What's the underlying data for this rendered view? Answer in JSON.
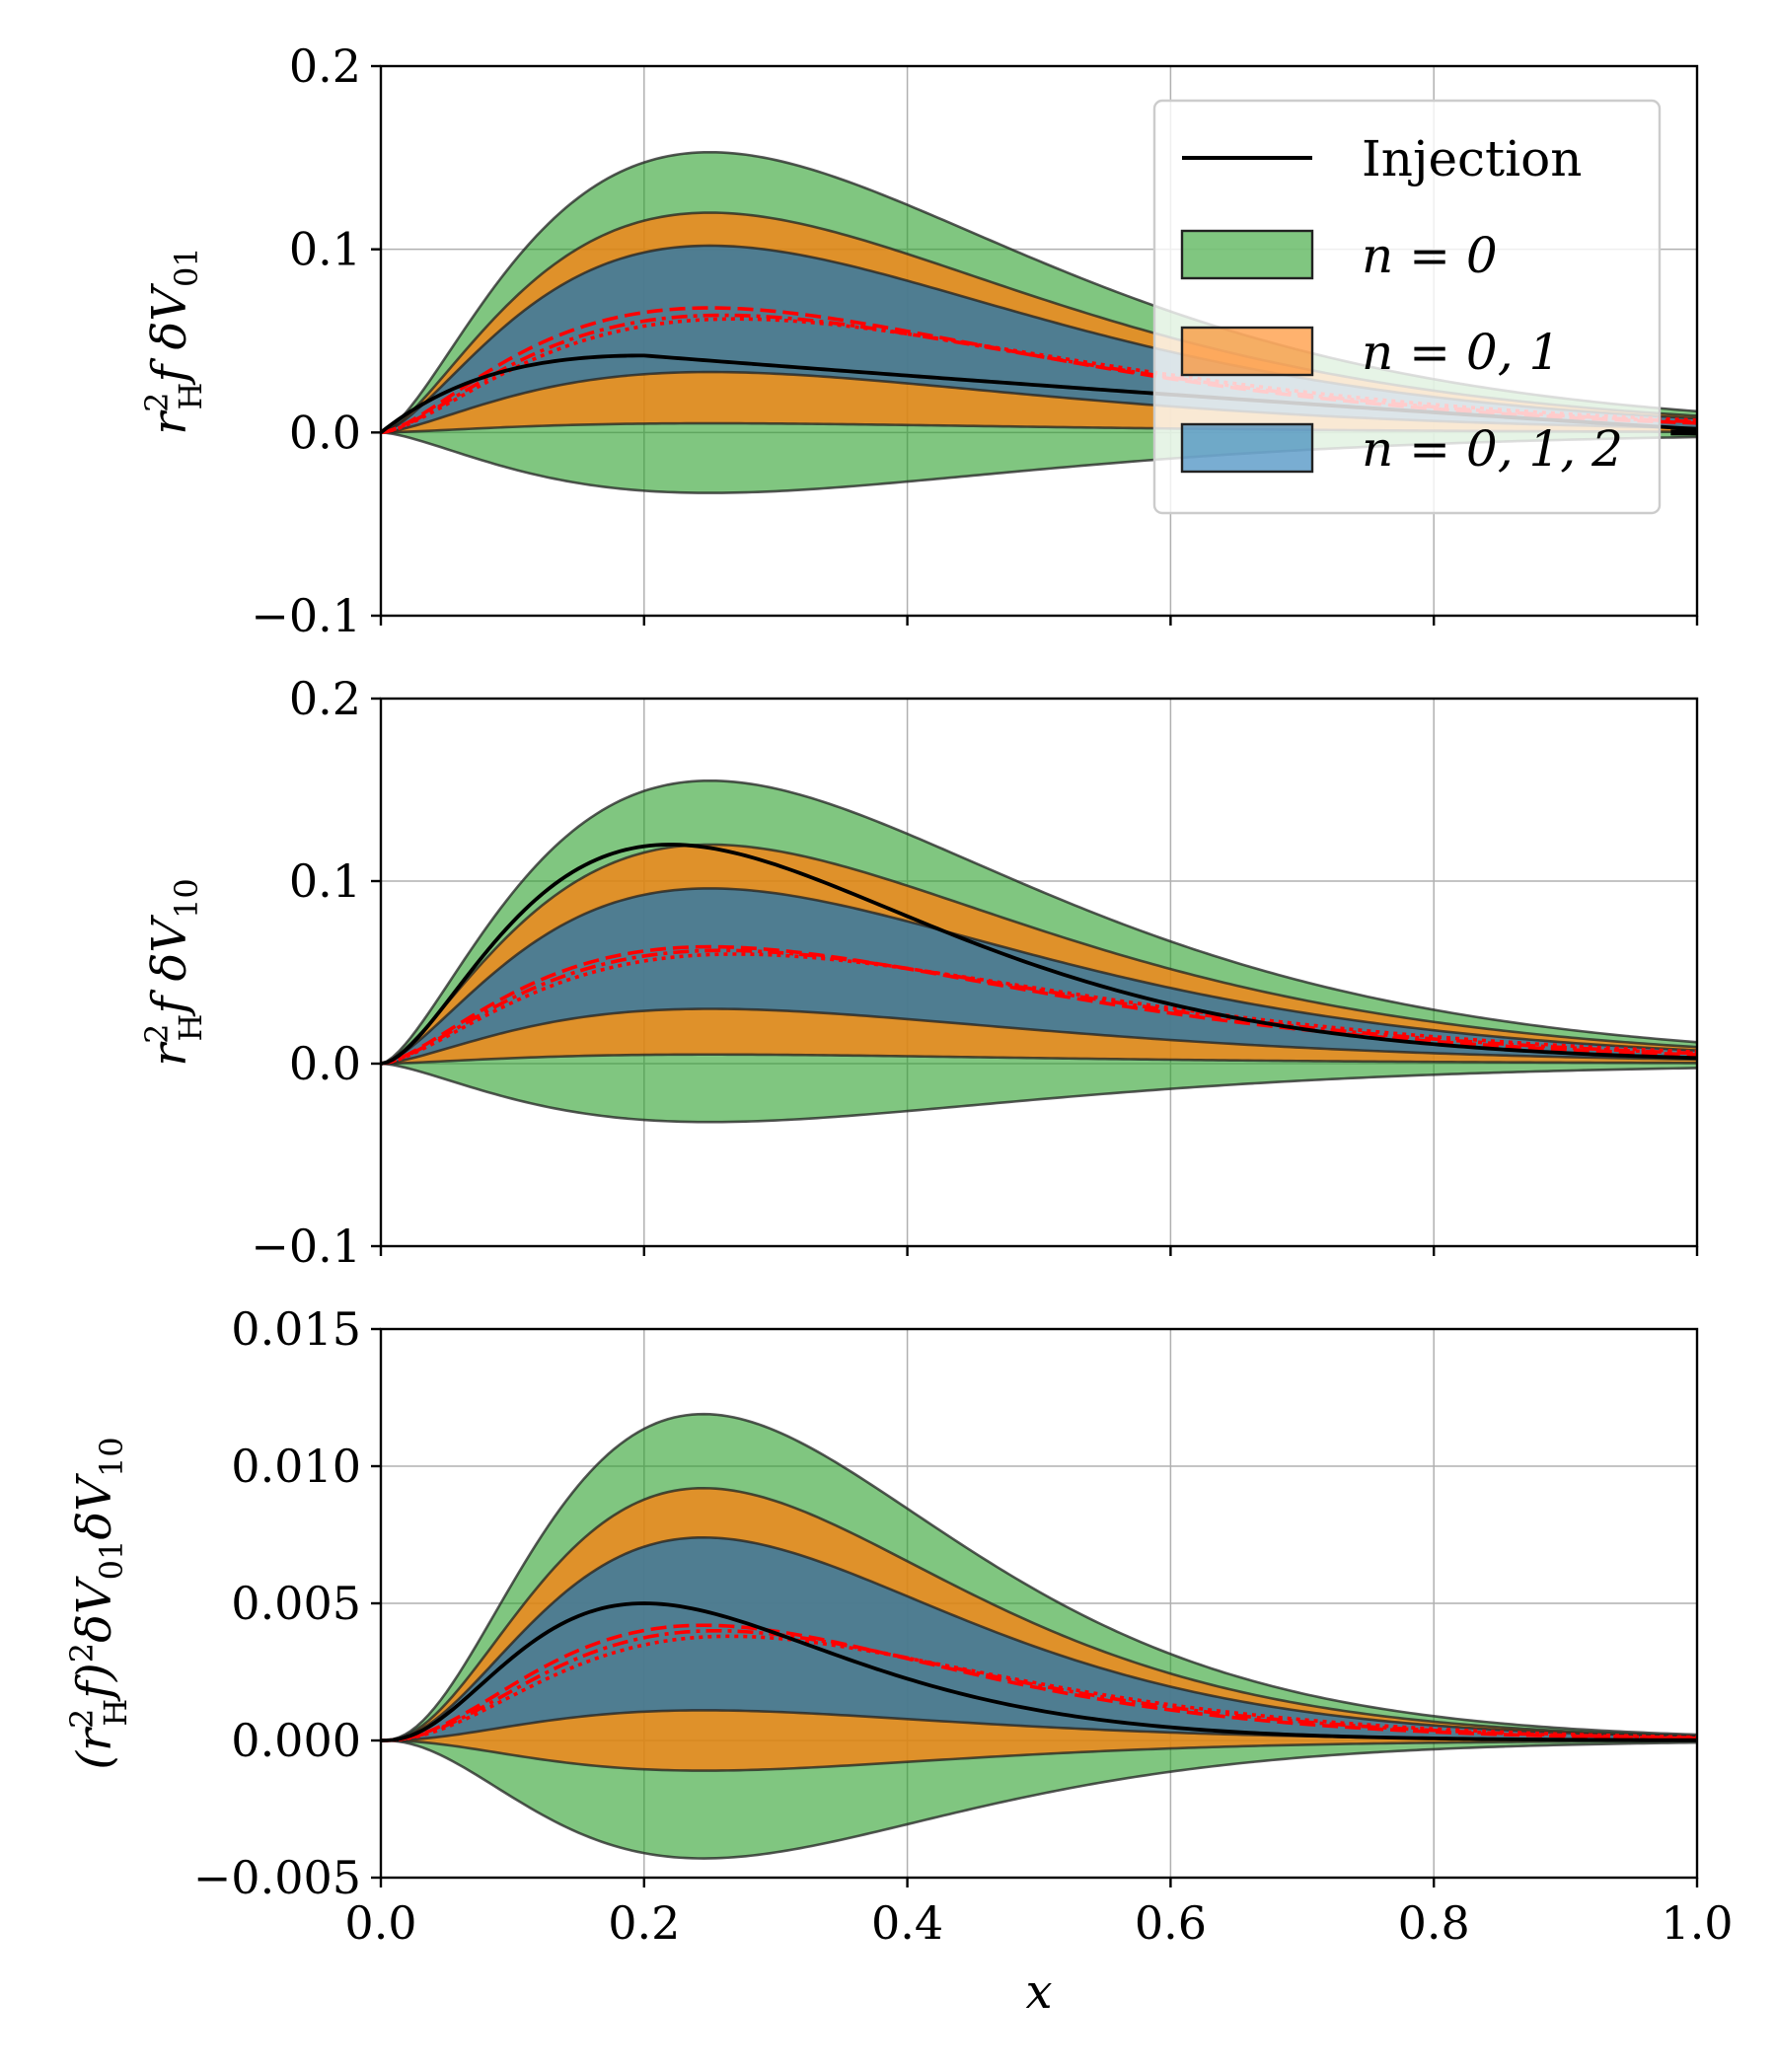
{
  "chart_data": [
    {
      "type": "area",
      "panel": "top",
      "ylabel": "r_H^2 f δV_01",
      "ylabel_parts": {
        "r": "r",
        "sup": "2",
        "sub": "H",
        "rest": "f δV",
        "rest_sub": "01"
      },
      "ylim": [
        -0.1,
        0.2
      ],
      "yticks": [
        "−0.1",
        "0.0",
        "0.1",
        "0.2"
      ],
      "ytick_values": [
        -0.1,
        0.0,
        0.1,
        0.2
      ],
      "xlim": [
        0,
        1
      ],
      "grid": true,
      "bands": {
        "n0": {
          "upper_peak": 0.153,
          "lower_peak": -0.033
        },
        "n01": {
          "upper_peak": 0.12,
          "lower_peak": 0.005
        },
        "n012": {
          "upper_peak": 0.102,
          "lower_peak": 0.033
        }
      },
      "peak_x": 0.25,
      "injection_peak": 0.042,
      "injection_peak_x": 0.2,
      "injection_tail": "linear",
      "red_curves_peak": [
        0.068,
        0.064,
        0.062
      ],
      "legend": {
        "position": "top-right",
        "entries": [
          {
            "label": "Injection",
            "style": "line",
            "color": "#000000"
          },
          {
            "label": "n = 0",
            "style": "patch",
            "color": "#2ca02c"
          },
          {
            "label": "n = 0, 1",
            "style": "patch",
            "color": "#ff7f0e"
          },
          {
            "label": "n = 0, 1, 2",
            "style": "patch",
            "color": "#1f77b4"
          }
        ]
      }
    },
    {
      "type": "area",
      "panel": "middle",
      "ylabel": "r_H^2 f δV_10",
      "ylabel_parts": {
        "r": "r",
        "sup": "2",
        "sub": "H",
        "rest": "f δV",
        "rest_sub": "10"
      },
      "ylim": [
        -0.1,
        0.2
      ],
      "yticks": [
        "−0.1",
        "0.0",
        "0.1",
        "0.2"
      ],
      "ytick_values": [
        -0.1,
        0.0,
        0.1,
        0.2
      ],
      "xlim": [
        0,
        1
      ],
      "grid": true,
      "bands": {
        "n0": {
          "upper_peak": 0.155,
          "lower_peak": -0.032
        },
        "n01": {
          "upper_peak": 0.12,
          "lower_peak": 0.005
        },
        "n012": {
          "upper_peak": 0.096,
          "lower_peak": 0.03
        }
      },
      "peak_x": 0.25,
      "injection_peak": 0.12,
      "injection_peak_x": 0.22,
      "injection_tail": "gaussian",
      "red_curves_peak": [
        0.064,
        0.062,
        0.06
      ]
    },
    {
      "type": "area",
      "panel": "bottom",
      "ylabel": "(r_H^2 f)^2 δV_01 δV_10",
      "ylabel_parts": {
        "r": "(r",
        "sup": "2",
        "sub": "H",
        "rest": "f)",
        "sup2": "2",
        "rest2": "δV",
        "sub2": "01",
        "rest3": "δV",
        "sub3": "10"
      },
      "ylim": [
        -0.005,
        0.015
      ],
      "yticks": [
        "−0.005",
        "0.000",
        "0.005",
        "0.010",
        "0.015"
      ],
      "ytick_values": [
        -0.005,
        0.0,
        0.005,
        0.01,
        0.015
      ],
      "xlim": [
        0,
        1
      ],
      "xlabel": "x",
      "xticks": [
        "0.0",
        "0.2",
        "0.4",
        "0.6",
        "0.8",
        "1.0"
      ],
      "xtick_values": [
        0.0,
        0.2,
        0.4,
        0.6,
        0.8,
        1.0
      ],
      "grid": true,
      "bands": {
        "n0": {
          "upper_peak": 0.0119,
          "lower_peak": -0.0043
        },
        "n01": {
          "upper_peak": 0.0092,
          "lower_peak": -0.0011
        },
        "n012": {
          "upper_peak": 0.0074,
          "lower_peak": 0.0011
        }
      },
      "peak_x": 0.245,
      "injection_peak": 0.005,
      "injection_peak_x": 0.2,
      "injection_tail": "gaussian",
      "red_curves_peak": [
        0.0042,
        0.004,
        0.0038
      ]
    }
  ],
  "colors": {
    "n0": "#2ca02c",
    "n01": "#ff7f0e",
    "n012": "#1f77b4",
    "injection": "#000000",
    "estimate": "#ff0000",
    "grid": "#b0b0b0"
  }
}
